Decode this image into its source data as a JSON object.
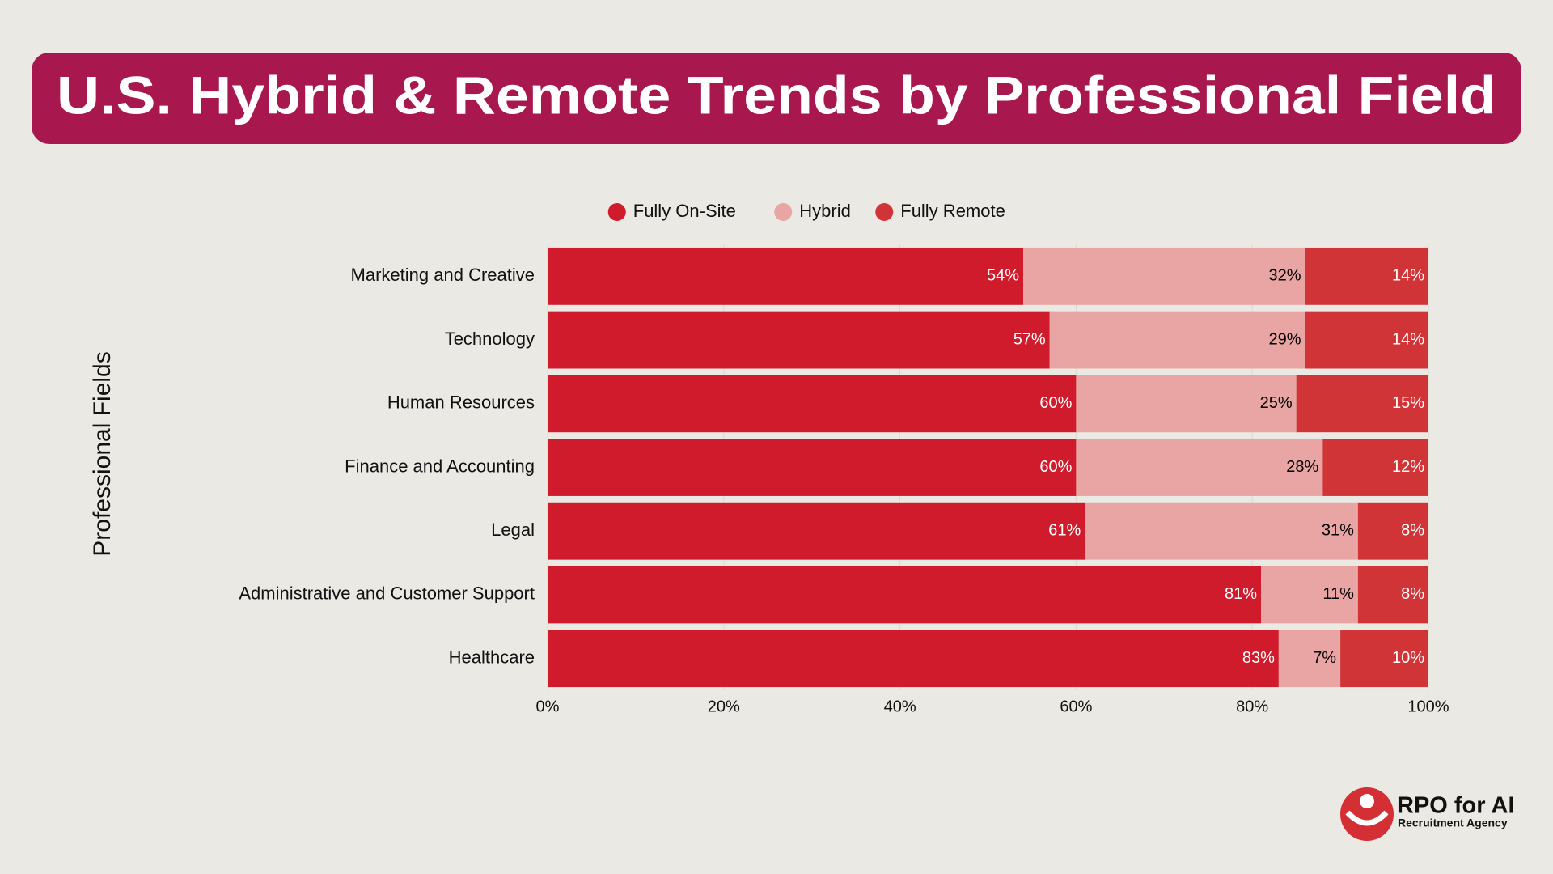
{
  "chart_data": {
    "type": "stacked-bar-horizontal",
    "title": "U.S. Hybrid & Remote Trends by Professional Field",
    "y_label": "Professional Fields",
    "categories": [
      "Marketing and Creative",
      "Technology",
      "Human Resources",
      "Finance and Accounting",
      "Legal",
      "Administrative and Customer Support",
      "Healthcare"
    ],
    "series": [
      {
        "name": "Fully On-Site",
        "color": "#cf1b2b",
        "label_color": "#ffffff",
        "values": [
          54,
          57,
          60,
          60,
          61,
          81,
          83
        ],
        "value_labels": [
          "54%",
          "57%",
          "60%",
          "60%",
          "61%",
          "81%",
          "83%"
        ]
      },
      {
        "name": "Hybrid",
        "color": "#e8a5a3",
        "label_color": "#000000",
        "values": [
          32,
          29,
          25,
          28,
          31,
          11,
          7
        ],
        "value_labels": [
          "32%",
          "29%",
          "25%",
          "28%",
          "31%",
          "11%",
          "7%"
        ]
      },
      {
        "name": "Fully Remote",
        "color": "#d03437",
        "label_color": "#ffffff",
        "values": [
          14,
          14,
          15,
          12,
          8,
          8,
          10
        ],
        "value_labels": [
          "14%",
          "14%",
          "15%",
          "12%",
          "8%",
          "8%",
          "10%"
        ]
      }
    ],
    "xlim": [
      0,
      100
    ],
    "xticks": [
      {
        "value": 0,
        "label": "0%"
      },
      {
        "value": 20,
        "label": "20%"
      },
      {
        "value": 40,
        "label": "40%"
      },
      {
        "value": 60,
        "label": "60%"
      },
      {
        "value": 80,
        "label": "80%"
      },
      {
        "value": 100,
        "label": "100%"
      }
    ],
    "grid": true,
    "legend": "top"
  },
  "logo": {
    "name": "RPO for AI",
    "tagline": "Recruitment Agency"
  }
}
